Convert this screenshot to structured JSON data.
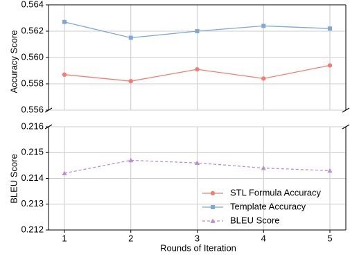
{
  "chart_data": {
    "type": "line",
    "xlabel": "Rounds of Iteration",
    "x": [
      1,
      2,
      3,
      4,
      5
    ],
    "x_ticks": [
      "1",
      "2",
      "3",
      "4",
      "5"
    ],
    "grid": true,
    "legend_position": "lower-right",
    "panels": [
      {
        "name": "top",
        "ylabel": "Accuracy Score",
        "ylim": [
          0.556,
          0.564
        ],
        "y_ticks": [
          "0.556",
          "0.558",
          "0.560",
          "0.562",
          "0.564"
        ],
        "series": [
          {
            "name": "STL Formula Accuracy",
            "color": "#f07f72",
            "marker": "circle",
            "dash": false,
            "values": [
              0.5587,
              0.5582,
              0.5591,
              0.5584,
              0.5594
            ]
          },
          {
            "name": "Template Accuracy",
            "color": "#7fa7d8",
            "marker": "square",
            "dash": false,
            "values": [
              0.5627,
              0.5615,
              0.562,
              0.5624,
              0.5622
            ]
          }
        ]
      },
      {
        "name": "bottom",
        "ylabel": "BLEU Score",
        "ylim": [
          0.212,
          0.216
        ],
        "y_ticks": [
          "0.212",
          "0.213",
          "0.214",
          "0.215",
          "0.216"
        ],
        "series": [
          {
            "name": "BLEU Score",
            "color": "#b88fd0",
            "marker": "triangle",
            "dash": true,
            "values": [
              0.2142,
              0.2147,
              0.2146,
              0.2144,
              0.2143
            ]
          }
        ]
      }
    ],
    "legend": [
      "STL Formula Accuracy",
      "Template Accuracy",
      "BLEU Score"
    ]
  }
}
